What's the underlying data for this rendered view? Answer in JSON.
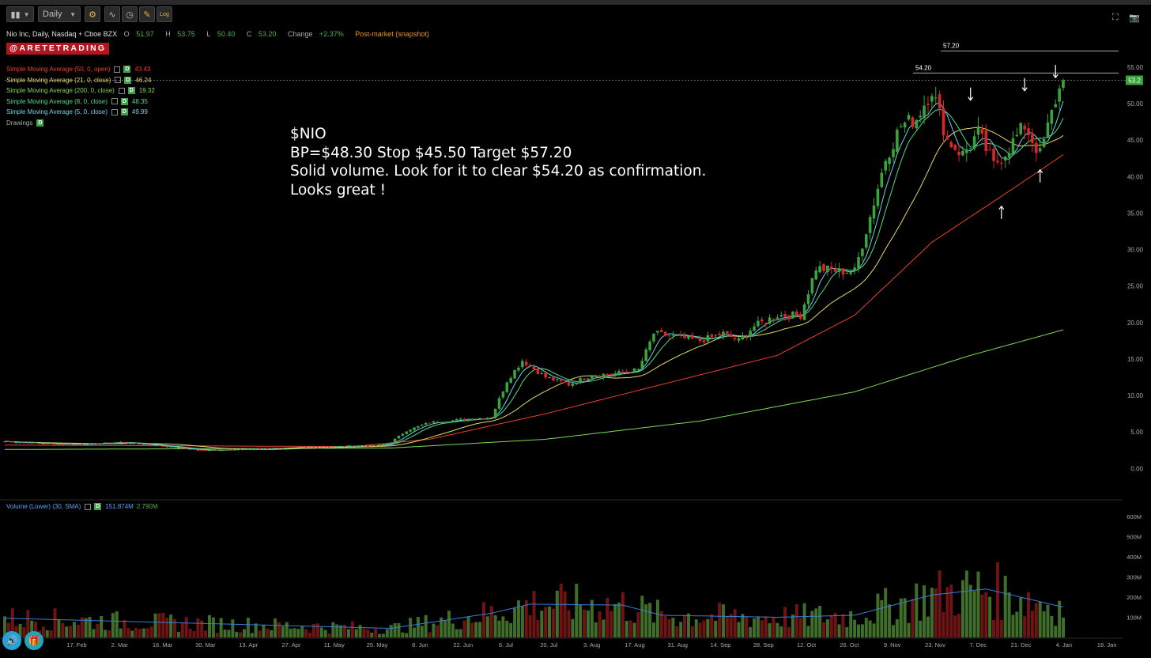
{
  "toolbar": {
    "chart_style_icon": "candlestick-bars-icon",
    "timeframe": "Daily",
    "settings_icon": "gear-icon",
    "studies_icon": "studies-icon",
    "clock_icon": "clock-icon",
    "drawing_icon": "drawing-tools-icon",
    "log_label": "Log",
    "fullscreen_icon": "fullscreen-icon",
    "snapshot_icon": "camera-icon"
  },
  "header": {
    "symbol": "Nio Inc, Daily, Nasdaq + Cboe BZX",
    "o_label": "O",
    "o_value": "51.97",
    "h_label": "H",
    "h_value": "53.75",
    "l_label": "L",
    "l_value": "50.40",
    "c_label": "C",
    "c_value": "53.20",
    "change_label": "Change",
    "change_value": "+2.37%",
    "post_market": "Post-market (snapshot)"
  },
  "brand": "@ARETETRADING",
  "studies": [
    {
      "label": "Simple Moving Average (50, 0, open)",
      "value": "43.43",
      "color": "#e8412c"
    },
    {
      "label": "Simple Moving Average (21, 0, close)",
      "value": "46.24",
      "color": "#e6d86a"
    },
    {
      "label": "Simple Moving Average (200, 0, close)",
      "value": "19.32",
      "color": "#7ed957"
    },
    {
      "label": "Simple Moving Average (8, 0, close)",
      "value": "48.35",
      "color": "#4fd98a"
    },
    {
      "label": "Simple Moving Average (5, 0, close)",
      "value": "49.99",
      "color": "#6fd3e8"
    }
  ],
  "drawings_label": "Drawings",
  "badge_label": "D",
  "annotation": {
    "line1": "$NIO",
    "line2": "BP=$48.30 Stop $45.50 Target $57.20",
    "line3": "Solid volume. Look for it to clear $54.20 as confirmation.",
    "line4": "Looks great !"
  },
  "volume_study": {
    "label": "Volume (Lower) (30, SMA)",
    "value1": "151.874M",
    "value2": "2.790M"
  },
  "chart_data": {
    "type": "candlestick",
    "title": "Nio Inc, Daily, Nasdaq + Cboe BZX",
    "y_axis": {
      "ticks": [
        "55.00",
        "50.00",
        "45.00",
        "40.00",
        "35.00",
        "30.00",
        "25.00",
        "20.00",
        "15.00",
        "10.00",
        "5.00",
        "0.00"
      ],
      "range": [
        -3,
        59
      ]
    },
    "x_axis": {
      "ticks": [
        "17. Feb",
        "2. Mar",
        "16. Mar",
        "30. Mar",
        "13. Apr",
        "27. Apr",
        "11. May",
        "25. May",
        "8. Jun",
        "22. Jun",
        "6. Jul",
        "20. Jul",
        "3. Aug",
        "17. Aug",
        "31. Aug",
        "14. Sep",
        "28. Sep",
        "12. Oct",
        "26. Oct",
        "9. Nov",
        "23. Nov",
        "7. Dec",
        "21. Dec",
        "4. Jan",
        "18. Jan"
      ]
    },
    "last_price_label": "53.2",
    "last_price": 53.2,
    "price_series": [
      {
        "i": 0,
        "p": 3.7
      },
      {
        "i": 10,
        "p": 3.4
      },
      {
        "i": 20,
        "p": 3.3
      },
      {
        "i": 30,
        "p": 3.6
      },
      {
        "i": 40,
        "p": 3.1
      },
      {
        "i": 50,
        "p": 2.5
      },
      {
        "i": 60,
        "p": 2.6
      },
      {
        "i": 70,
        "p": 2.8
      },
      {
        "i": 80,
        "p": 2.9
      },
      {
        "i": 90,
        "p": 3.1
      },
      {
        "i": 96,
        "p": 3.1
      },
      {
        "i": 100,
        "p": 3.6
      },
      {
        "i": 104,
        "p": 5.2
      },
      {
        "i": 110,
        "p": 6.3
      },
      {
        "i": 120,
        "p": 6.8
      },
      {
        "i": 126,
        "p": 7.0
      },
      {
        "i": 130,
        "p": 12.0
      },
      {
        "i": 134,
        "p": 14.8
      },
      {
        "i": 140,
        "p": 12.5
      },
      {
        "i": 146,
        "p": 11.5
      },
      {
        "i": 152,
        "p": 12.8
      },
      {
        "i": 158,
        "p": 13.0
      },
      {
        "i": 164,
        "p": 13.5
      },
      {
        "i": 168,
        "p": 18.5
      },
      {
        "i": 174,
        "p": 18.0
      },
      {
        "i": 180,
        "p": 17.5
      },
      {
        "i": 186,
        "p": 18.5
      },
      {
        "i": 190,
        "p": 17.5
      },
      {
        "i": 194,
        "p": 19.5
      },
      {
        "i": 200,
        "p": 21.0
      },
      {
        "i": 206,
        "p": 21.0
      },
      {
        "i": 210,
        "p": 27.5
      },
      {
        "i": 216,
        "p": 27.0
      },
      {
        "i": 220,
        "p": 27.0
      },
      {
        "i": 224,
        "p": 34.5
      },
      {
        "i": 228,
        "p": 42.5
      },
      {
        "i": 232,
        "p": 47.0
      },
      {
        "i": 236,
        "p": 48.0
      },
      {
        "i": 240,
        "p": 52.0
      },
      {
        "i": 244,
        "p": 45.0
      },
      {
        "i": 248,
        "p": 43.0
      },
      {
        "i": 252,
        "p": 46.0
      },
      {
        "i": 256,
        "p": 41.5
      },
      {
        "i": 260,
        "p": 44.0
      },
      {
        "i": 264,
        "p": 47.0
      },
      {
        "i": 268,
        "p": 43.0
      },
      {
        "i": 272,
        "p": 50.5
      },
      {
        "i": 274,
        "p": 53.2
      }
    ],
    "sma50": [
      {
        "i": 0,
        "p": 3.2
      },
      {
        "i": 90,
        "p": 3.0
      },
      {
        "i": 110,
        "p": 4.0
      },
      {
        "i": 140,
        "p": 7.5
      },
      {
        "i": 170,
        "p": 11.5
      },
      {
        "i": 200,
        "p": 15.5
      },
      {
        "i": 220,
        "p": 21.0
      },
      {
        "i": 240,
        "p": 31.0
      },
      {
        "i": 260,
        "p": 38.0
      },
      {
        "i": 274,
        "p": 43.0
      }
    ],
    "sma200": [
      {
        "i": 0,
        "p": 2.6
      },
      {
        "i": 100,
        "p": 2.8
      },
      {
        "i": 140,
        "p": 4.0
      },
      {
        "i": 180,
        "p": 6.5
      },
      {
        "i": 220,
        "p": 10.5
      },
      {
        "i": 250,
        "p": 15.5
      },
      {
        "i": 274,
        "p": 19.0
      }
    ],
    "levels": [
      {
        "label": "57.20",
        "value": 57.2
      },
      {
        "label": "54.20",
        "value": 54.2
      }
    ],
    "volume_axis": {
      "ticks": [
        "600M",
        "500M",
        "400M",
        "300M",
        "200M",
        "100M"
      ]
    },
    "volume_sma": [
      {
        "i": 0,
        "p": 95
      },
      {
        "i": 40,
        "p": 75
      },
      {
        "i": 100,
        "p": 45
      },
      {
        "i": 126,
        "p": 120
      },
      {
        "i": 136,
        "p": 165
      },
      {
        "i": 160,
        "p": 160
      },
      {
        "i": 170,
        "p": 110
      },
      {
        "i": 200,
        "p": 100
      },
      {
        "i": 220,
        "p": 110
      },
      {
        "i": 240,
        "p": 210
      },
      {
        "i": 254,
        "p": 240
      },
      {
        "i": 274,
        "p": 150
      }
    ]
  }
}
